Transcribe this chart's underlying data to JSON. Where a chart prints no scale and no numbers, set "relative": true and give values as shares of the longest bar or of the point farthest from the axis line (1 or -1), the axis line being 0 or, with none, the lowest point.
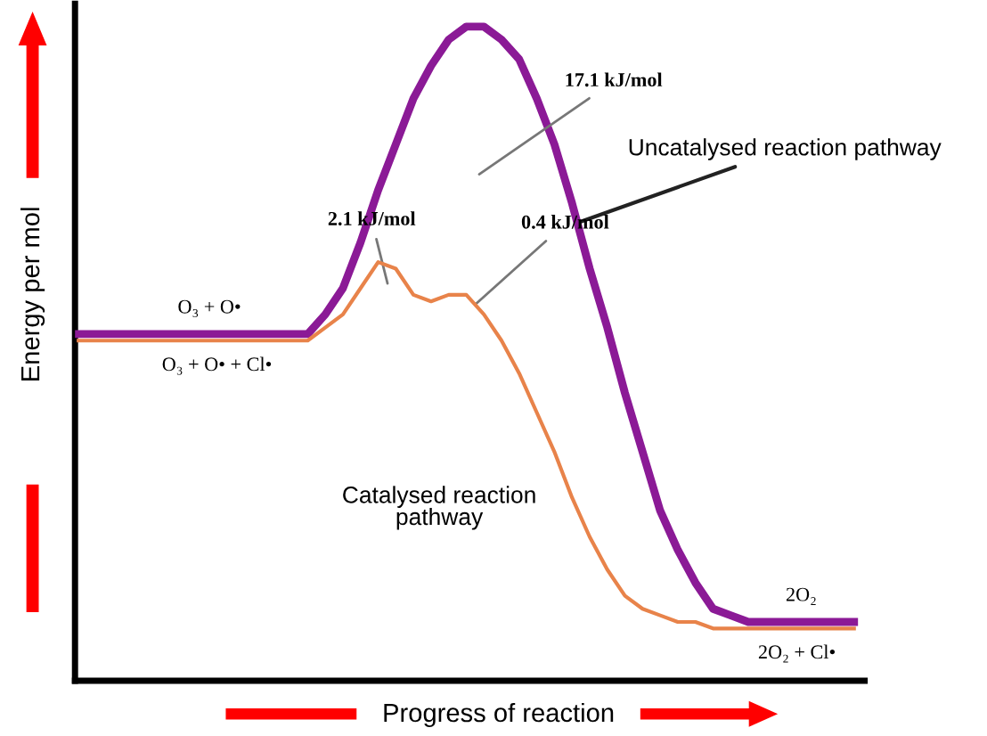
{
  "chart_data": {
    "type": "line",
    "relative": true,
    "xlabel": "Progress of reaction",
    "ylabel": "Energy per mol",
    "categories": [
      null,
      null,
      null,
      null,
      null,
      null,
      null,
      null,
      null,
      null,
      null,
      null,
      null,
      null,
      null,
      null,
      null,
      null,
      null,
      null,
      null,
      null,
      null,
      null,
      null,
      null,
      null,
      null,
      null,
      null,
      null,
      null,
      null,
      null,
      null,
      null,
      null,
      null,
      null,
      null,
      null,
      null,
      null,
      null,
      null
    ],
    "series": [
      {
        "name": "Uncatalysed reaction pathway",
        "color": "#8b1a96",
        "values": [
          0.53,
          0.53,
          0.53,
          0.53,
          0.53,
          0.53,
          0.53,
          0.53,
          0.53,
          0.53,
          0.53,
          0.53,
          0.53,
          0.53,
          0.56,
          0.6,
          0.67,
          0.75,
          0.82,
          0.89,
          0.94,
          0.98,
          1.0,
          1.0,
          0.98,
          0.95,
          0.89,
          0.82,
          0.73,
          0.63,
          0.54,
          0.44,
          0.35,
          0.26,
          0.2,
          0.15,
          0.11,
          0.1,
          0.09,
          0.09,
          0.09,
          0.09,
          0.09,
          0.09,
          0.09
        ]
      },
      {
        "name": "Catalysed reaction pathway",
        "color": "#e8834a",
        "values": [
          0.52,
          0.52,
          0.52,
          0.52,
          0.52,
          0.52,
          0.52,
          0.52,
          0.52,
          0.52,
          0.52,
          0.52,
          0.52,
          0.52,
          0.54,
          0.56,
          0.6,
          0.64,
          0.63,
          0.59,
          0.58,
          0.59,
          0.59,
          0.56,
          0.52,
          0.47,
          0.41,
          0.35,
          0.28,
          0.22,
          0.17,
          0.13,
          0.11,
          0.1,
          0.09,
          0.09,
          0.08,
          0.08,
          0.08,
          0.08,
          0.08,
          0.08,
          0.08,
          0.08,
          0.08
        ]
      }
    ],
    "annotations": [
      "O₃ + O•",
      "O₃ + O• + Cl•",
      "2O₂",
      "2O₂ + Cl•",
      "2.1 kJ/mol",
      "0.4 kJ/mol",
      "17.1 kJ/mol"
    ],
    "legend": false,
    "marker": "none",
    "line_style": "solid"
  }
}
